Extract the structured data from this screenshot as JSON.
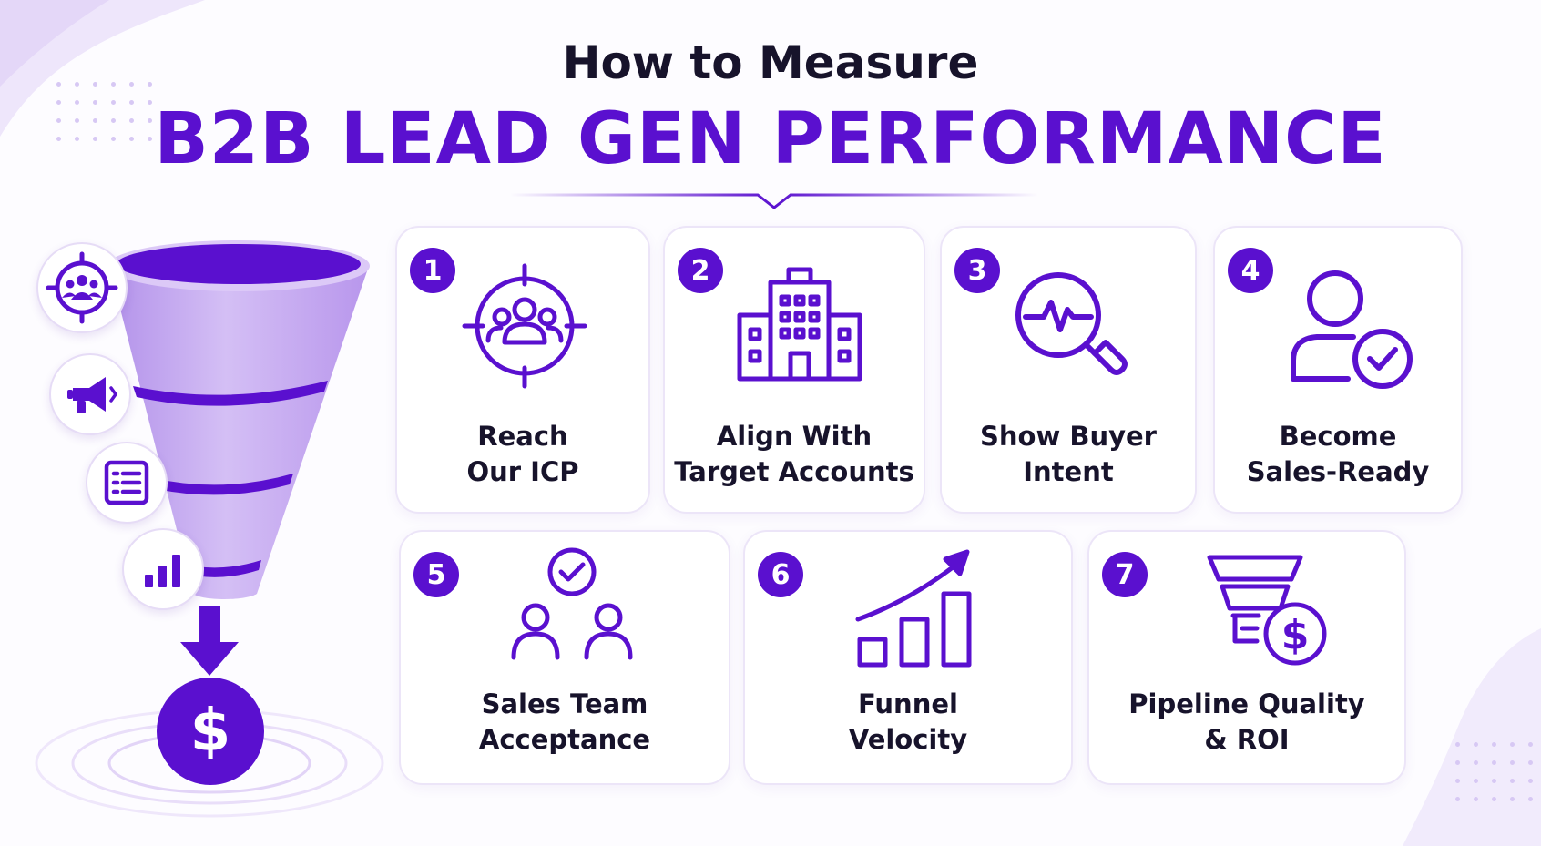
{
  "header": {
    "title_top": "How to Measure",
    "title_main": "B2B LEAD GEN PERFORMANCE"
  },
  "colors": {
    "accent": "#5a10cf",
    "funnel_light": "#c8aef0",
    "text_dark": "#17132b",
    "card_border": "#ece5f8"
  },
  "funnel": {
    "side_icons": [
      "target-audience-icon",
      "megaphone-icon",
      "form-list-icon",
      "bar-chart-icon"
    ],
    "output_symbol": "$"
  },
  "steps": [
    {
      "number": "1",
      "line1": "Reach",
      "line2": "Our ICP",
      "icon": "target-audience-icon"
    },
    {
      "number": "2",
      "line1": "Align With",
      "line2": "Target Accounts",
      "icon": "building-icon"
    },
    {
      "number": "3",
      "line1": "Show Buyer",
      "line2": "Intent",
      "icon": "magnifier-pulse-icon"
    },
    {
      "number": "4",
      "line1": "Become",
      "line2": "Sales-Ready",
      "icon": "user-check-icon"
    },
    {
      "number": "5",
      "line1": "Sales Team",
      "line2": "Acceptance",
      "icon": "team-check-icon"
    },
    {
      "number": "6",
      "line1": "Funnel",
      "line2": "Velocity",
      "icon": "growth-chart-icon"
    },
    {
      "number": "7",
      "line1": "Pipeline Quality",
      "line2": "& ROI",
      "icon": "funnel-dollar-icon"
    }
  ]
}
